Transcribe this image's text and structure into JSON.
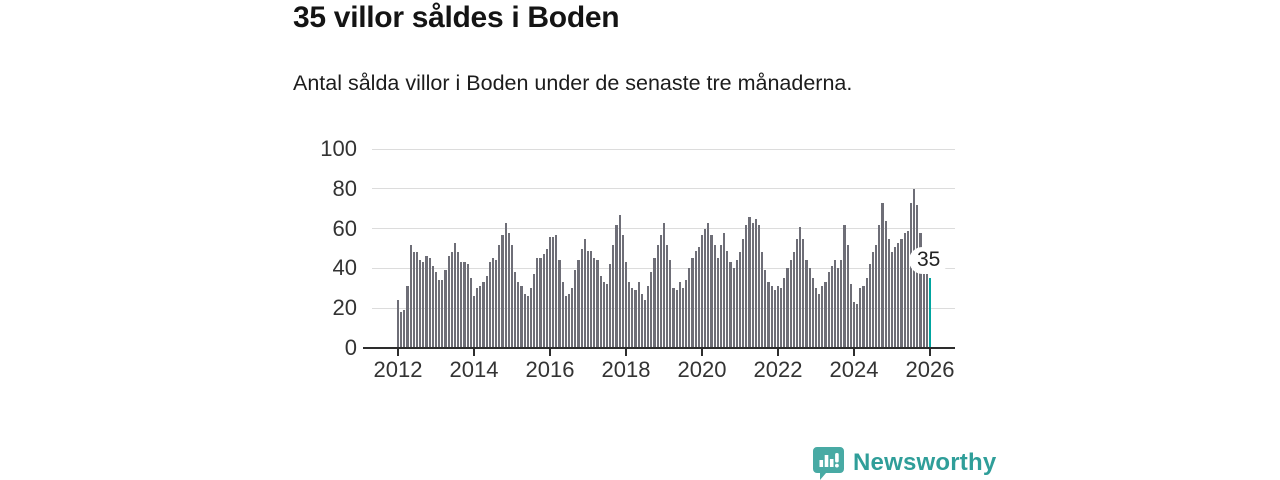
{
  "header": {
    "title": "35 villor såldes i Boden",
    "subtitle": "Antal sålda villor i Boden under de senaste tre månaderna."
  },
  "chart_data": {
    "type": "bar",
    "title": "35 villor såldes i Boden",
    "xlabel": "",
    "ylabel": "",
    "ylim": [
      0,
      100
    ],
    "yticks": [
      0,
      20,
      40,
      60,
      80,
      100
    ],
    "xticks": [
      2012,
      2014,
      2016,
      2018,
      2020,
      2022,
      2024,
      2026
    ],
    "grid": "horizontal",
    "freq": "monthly",
    "start": "2012-01",
    "bar_color": "#6e6e77",
    "highlight_color": "#00a5a0",
    "series": [
      {
        "year": 2012,
        "values": [
          24,
          18,
          19,
          31,
          52,
          48,
          48,
          44,
          43,
          46,
          45,
          41
        ]
      },
      {
        "year": 2013,
        "values": [
          38,
          34,
          34,
          39,
          46,
          48,
          53,
          48,
          43,
          43,
          42,
          35
        ]
      },
      {
        "year": 2014,
        "values": [
          26,
          30,
          31,
          33,
          36,
          43,
          45,
          44,
          52,
          57,
          63,
          58
        ]
      },
      {
        "year": 2015,
        "values": [
          52,
          38,
          33,
          31,
          27,
          26,
          30,
          37,
          45,
          45,
          47,
          50
        ]
      },
      {
        "year": 2016,
        "values": [
          56,
          56,
          57,
          44,
          33,
          26,
          27,
          30,
          39,
          44,
          50,
          55
        ]
      },
      {
        "year": 2017,
        "values": [
          49,
          49,
          45,
          44,
          36,
          33,
          32,
          42,
          52,
          62,
          67,
          57
        ]
      },
      {
        "year": 2018,
        "values": [
          43,
          33,
          30,
          29,
          33,
          27,
          24,
          31,
          38,
          45,
          52,
          57
        ]
      },
      {
        "year": 2019,
        "values": [
          63,
          52,
          44,
          30,
          29,
          33,
          30,
          34,
          40,
          45,
          49,
          51
        ]
      },
      {
        "year": 2020,
        "values": [
          57,
          60,
          63,
          57,
          52,
          45,
          52,
          58,
          49,
          43,
          40,
          44
        ]
      },
      {
        "year": 2021,
        "values": [
          48,
          55,
          62,
          66,
          63,
          65,
          62,
          48,
          39,
          33,
          31,
          29
        ]
      },
      {
        "year": 2022,
        "values": [
          31,
          30,
          35,
          40,
          44,
          48,
          55,
          61,
          55,
          44,
          40,
          35
        ]
      },
      {
        "year": 2023,
        "values": [
          30,
          27,
          31,
          33,
          38,
          41,
          44,
          40,
          44,
          62,
          52,
          32
        ]
      },
      {
        "year": 2024,
        "values": [
          23,
          22,
          30,
          31,
          35,
          42,
          48,
          52,
          62,
          73,
          64,
          55
        ]
      },
      {
        "year": 2025,
        "values": [
          48,
          51,
          53,
          55,
          58,
          59,
          73,
          80,
          72,
          58,
          45,
          38
        ]
      },
      {
        "year": 2026,
        "values": [
          35
        ]
      }
    ],
    "highlight": {
      "label": "35",
      "value": 35,
      "position": "last-bar"
    }
  },
  "footer": {
    "brand": "Newsworthy",
    "brand_color": "#2f9e99",
    "logo_icon": "bar-chart-speech-bubble"
  }
}
